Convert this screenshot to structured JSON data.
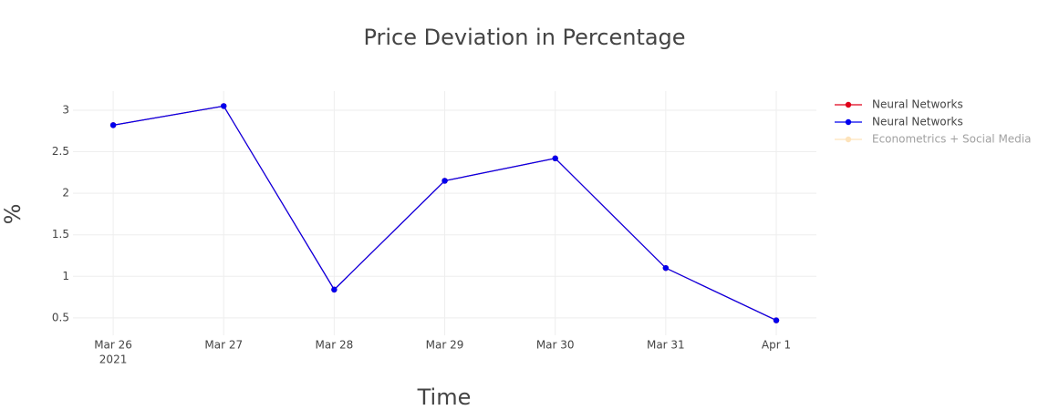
{
  "chart_data": {
    "type": "line",
    "title": "Price Deviation in Percentage",
    "x_label": "Time",
    "y_label": "%",
    "x": [
      "2021-03-26",
      "2021-03-27",
      "2021-03-28",
      "2021-03-29",
      "2021-03-30",
      "2021-03-31",
      "2021-04-01"
    ],
    "series": [
      {
        "name": "Neural Networks",
        "color": "#e0001a",
        "values": [
          2.82,
          3.05,
          0.84,
          2.15,
          2.42,
          1.1,
          0.47
        ]
      },
      {
        "name": "Neural Networks",
        "color": "#0000ee",
        "values": [
          2.82,
          3.05,
          0.84,
          2.15,
          2.42,
          1.1,
          0.47
        ]
      },
      {
        "name": "Econometrics + Social Media",
        "color": "#fdc87a",
        "visible": "legendonly"
      }
    ],
    "xlim": [
      "2021-03-25T15:16",
      "2021-04-01T08:43"
    ],
    "xticks": [
      {
        "value": "2021-03-26",
        "label": "Mar 26",
        "sublabel": "2021"
      },
      {
        "value": "2021-03-27",
        "label": "Mar 27"
      },
      {
        "value": "2021-03-28",
        "label": "Mar 28"
      },
      {
        "value": "2021-03-29",
        "label": "Mar 29"
      },
      {
        "value": "2021-03-30",
        "label": "Mar 30"
      },
      {
        "value": "2021-03-31",
        "label": "Mar 31"
      },
      {
        "value": "2021-04-01",
        "label": "Apr 1"
      }
    ],
    "ylim": [
      0.29,
      3.23
    ],
    "yticks": [
      0.5,
      1,
      1.5,
      2,
      2.5,
      3
    ],
    "grid": true,
    "legend": "right"
  }
}
